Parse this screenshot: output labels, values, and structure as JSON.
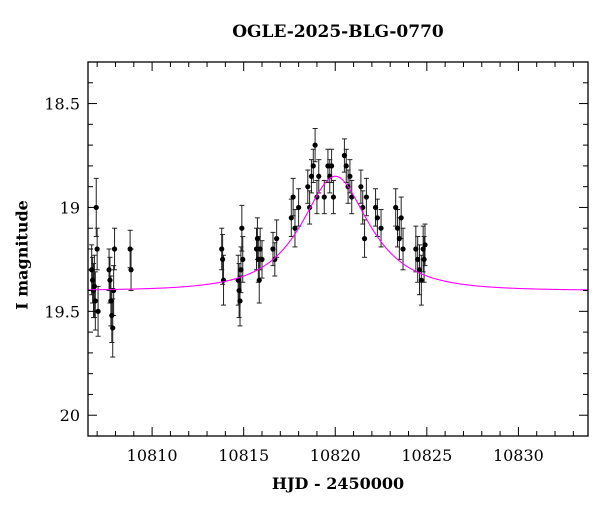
{
  "chart_data": {
    "type": "scatter",
    "title": "OGLE-2025-BLG-0770",
    "xlabel": "HJD - 2450000",
    "ylabel": "I magnitude",
    "xlim": [
      10806.5,
      10833.8
    ],
    "ylim": [
      20.1,
      18.3
    ],
    "y_inverted": true,
    "x_ticks": [
      10810,
      10815,
      10820,
      10825,
      10830
    ],
    "x_tick_labels": [
      "10810",
      "10815",
      "10820",
      "10825",
      "10830"
    ],
    "y_ticks": [
      18.5,
      19,
      19.5,
      20
    ],
    "y_tick_labels": [
      "18.5",
      "19",
      "19.5",
      "20"
    ],
    "grid": false,
    "legend": "none",
    "colors": {
      "points": "#000000",
      "model": "#ff00ff",
      "axes": "#000000"
    },
    "model": {
      "description": "microlensing fit",
      "t0": 10820.0,
      "baseline_mag": 19.4,
      "peak_mag": 18.85,
      "timescale_days": 3.3
    },
    "series": [
      {
        "points": [
          [
            10806.7,
            19.3,
            0.12
          ],
          [
            10806.75,
            19.35,
            0.11
          ],
          [
            10806.8,
            19.4,
            0.13
          ],
          [
            10806.85,
            19.38,
            0.15
          ],
          [
            10806.9,
            19.45,
            0.14
          ],
          [
            10806.95,
            19.0,
            0.14
          ],
          [
            10807.0,
            19.2,
            0.1
          ],
          [
            10807.05,
            19.5,
            0.12
          ],
          [
            10807.65,
            19.3,
            0.1
          ],
          [
            10807.7,
            19.35,
            0.11
          ],
          [
            10807.75,
            19.45,
            0.12
          ],
          [
            10807.8,
            19.52,
            0.13
          ],
          [
            10807.85,
            19.58,
            0.14
          ],
          [
            10807.9,
            19.4,
            0.12
          ],
          [
            10807.95,
            19.2,
            0.1
          ],
          [
            10808.8,
            19.2,
            0.09
          ],
          [
            10808.85,
            19.3,
            0.1
          ],
          [
            10813.8,
            19.2,
            0.1
          ],
          [
            10813.85,
            19.25,
            0.12
          ],
          [
            10813.9,
            19.35,
            0.12
          ],
          [
            10814.7,
            19.35,
            0.12
          ],
          [
            10814.75,
            19.4,
            0.13
          ],
          [
            10814.8,
            19.45,
            0.12
          ],
          [
            10814.85,
            19.3,
            0.11
          ],
          [
            10814.9,
            19.1,
            0.11
          ],
          [
            10814.95,
            19.25,
            0.11
          ],
          [
            10815.7,
            19.2,
            0.1
          ],
          [
            10815.75,
            19.15,
            0.1
          ],
          [
            10815.8,
            19.25,
            0.11
          ],
          [
            10815.85,
            19.35,
            0.11
          ],
          [
            10815.9,
            19.2,
            0.1
          ],
          [
            10816.0,
            19.25,
            0.09
          ],
          [
            10816.6,
            19.2,
            0.08
          ],
          [
            10816.7,
            19.25,
            0.08
          ],
          [
            10816.8,
            19.15,
            0.09
          ],
          [
            10817.6,
            19.05,
            0.09
          ],
          [
            10817.7,
            18.95,
            0.09
          ],
          [
            10817.8,
            19.1,
            0.09
          ],
          [
            10818.0,
            19.0,
            0.09
          ],
          [
            10818.5,
            18.9,
            0.08
          ],
          [
            10818.6,
            19.0,
            0.08
          ],
          [
            10818.7,
            18.85,
            0.08
          ],
          [
            10818.8,
            18.8,
            0.08
          ],
          [
            10818.9,
            18.7,
            0.08
          ],
          [
            10819.0,
            18.95,
            0.08
          ],
          [
            10819.1,
            18.85,
            0.08
          ],
          [
            10819.4,
            18.95,
            0.08
          ],
          [
            10819.6,
            18.8,
            0.08
          ],
          [
            10819.7,
            18.85,
            0.08
          ],
          [
            10819.8,
            18.8,
            0.08
          ],
          [
            10819.9,
            18.95,
            0.08
          ],
          [
            10820.5,
            18.75,
            0.08
          ],
          [
            10820.6,
            18.8,
            0.08
          ],
          [
            10820.7,
            18.9,
            0.08
          ],
          [
            10820.8,
            18.85,
            0.08
          ],
          [
            10820.9,
            18.95,
            0.08
          ],
          [
            10821.4,
            18.9,
            0.08
          ],
          [
            10821.5,
            19.0,
            0.08
          ],
          [
            10821.6,
            19.15,
            0.09
          ],
          [
            10821.7,
            18.95,
            0.09
          ],
          [
            10822.2,
            19.0,
            0.09
          ],
          [
            10822.3,
            19.05,
            0.09
          ],
          [
            10822.5,
            19.1,
            0.09
          ],
          [
            10823.3,
            19.0,
            0.09
          ],
          [
            10823.4,
            19.1,
            0.09
          ],
          [
            10823.5,
            19.15,
            0.1
          ],
          [
            10823.6,
            19.05,
            0.1
          ],
          [
            10823.7,
            19.2,
            0.1
          ],
          [
            10824.4,
            19.2,
            0.11
          ],
          [
            10824.5,
            19.25,
            0.11
          ],
          [
            10824.6,
            19.3,
            0.12
          ],
          [
            10824.7,
            19.35,
            0.12
          ],
          [
            10824.8,
            19.2,
            0.11
          ],
          [
            10824.85,
            19.25,
            0.11
          ],
          [
            10824.9,
            19.18,
            0.1
          ]
        ]
      }
    ]
  }
}
